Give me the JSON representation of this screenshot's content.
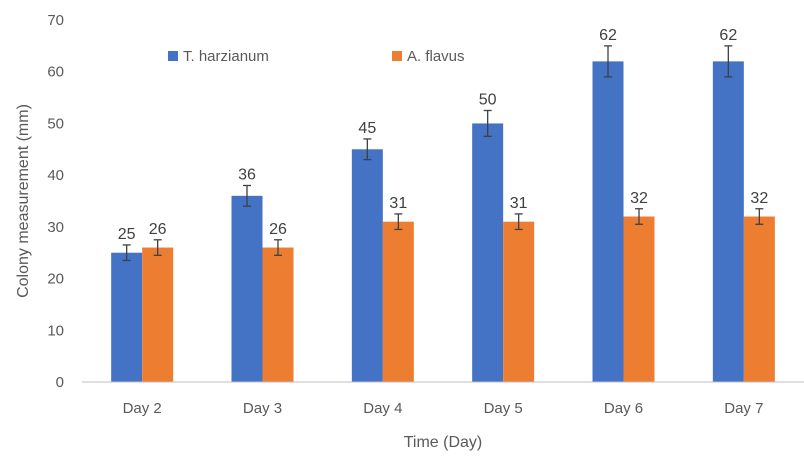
{
  "chart_data": {
    "type": "bar",
    "title": "",
    "xlabel": "Time (Day)",
    "ylabel": "Colony measurement (mm)",
    "ylim": [
      0,
      70
    ],
    "yticks": [
      0,
      10,
      20,
      30,
      40,
      50,
      60,
      70
    ],
    "grid": false,
    "legend_position": "top-left",
    "categories": [
      "Day 2",
      "Day 3",
      "Day 4",
      "Day 5",
      "Day 6",
      "Day 7"
    ],
    "series": [
      {
        "name": "T. harzianum",
        "color": "#4472C4",
        "values": [
          25,
          36,
          45,
          50,
          62,
          62
        ],
        "errors": [
          1.5,
          2,
          2,
          2.5,
          3,
          3
        ]
      },
      {
        "name": "A. flavus",
        "color": "#ED7D31",
        "values": [
          26,
          26,
          31,
          31,
          32,
          32
        ],
        "errors": [
          1.5,
          1.5,
          1.5,
          1.5,
          1.5,
          1.5
        ]
      }
    ]
  }
}
